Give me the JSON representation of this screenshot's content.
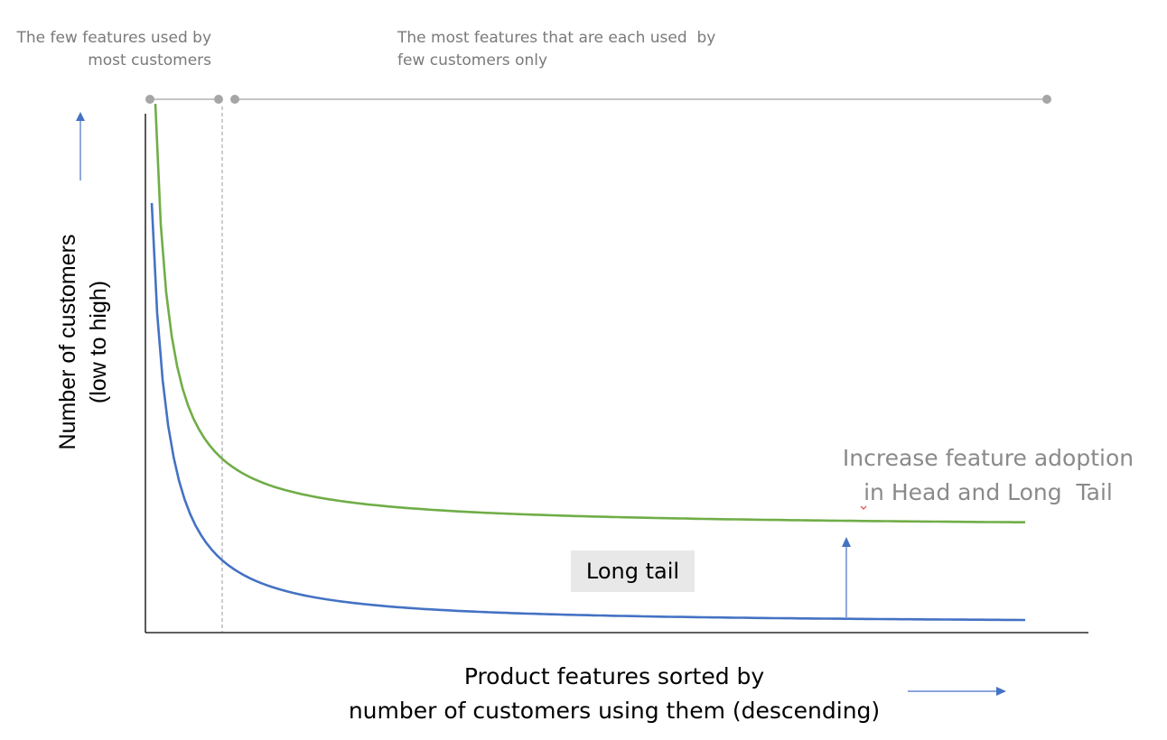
{
  "annotations": {
    "head_label": [
      "The few features used by",
      "most customers"
    ],
    "tail_label": [
      "The most features that are each used  by",
      "few customers only"
    ],
    "adoption_label": [
      "Increase feature adoption",
      "in Head and Long  Tail"
    ],
    "long_tail_box": "Long tail"
  },
  "axes": {
    "y_label": [
      "Number of customers",
      "(low to high)"
    ],
    "x_label": [
      "Product features sorted by",
      "number of customers using them (descending)"
    ]
  },
  "colors": {
    "baseline_curve": "#4472c4",
    "improved_curve": "#70ad47",
    "arrow": "#4472c4",
    "annotation_text": "#7a7a7a",
    "range_line": "#b0b0b0",
    "box_fill": "#e8e8e8"
  }
}
